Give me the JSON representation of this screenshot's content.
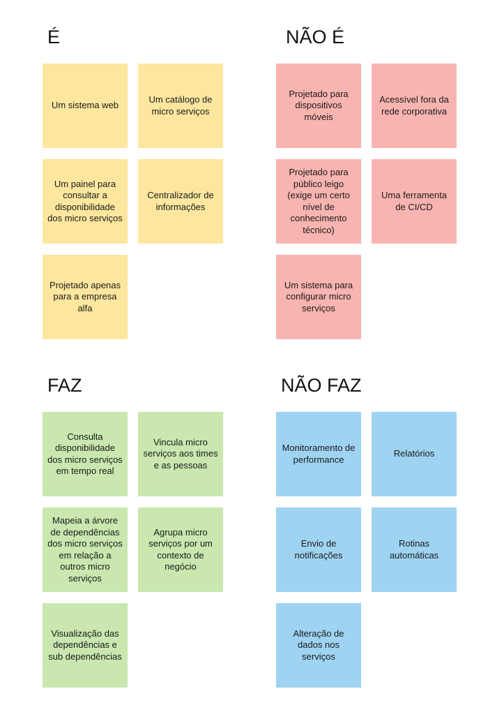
{
  "sections": {
    "e": {
      "title": "É",
      "notes": [
        "Um sistema web",
        "Um catálogo de micro serviços",
        "Um painel para consultar a disponibilidade dos micro serviços",
        "Centralizador de informações",
        "Projetado apenas para a empresa alfa"
      ]
    },
    "nao_e": {
      "title": "NÃO É",
      "notes": [
        "Projetado para dispositivos móveis",
        "Acessível fora da rede corporativa",
        "Projetado para público leigo (exige um certo nível de conhecimento técnico)",
        "Uma ferramenta de CI/CD",
        "Um sistema para configurar micro serviços"
      ]
    },
    "faz": {
      "title": "FAZ",
      "notes": [
        "Consulta disponibilidade dos micro serviços em tempo real",
        "Vincula micro serviços aos times e as pessoas",
        "Mapeia a árvore de dependências dos micro serviços em relação a outros micro serviços",
        "Agrupa micro serviços por um contexto de negócio",
        "Visualização das dependências e sub dependências"
      ]
    },
    "nao_faz": {
      "title": "NÃO FAZ",
      "notes": [
        "Monitoramento de performance",
        "Relatórios",
        "Envio de notificações",
        "Rotinas automáticas",
        "Alteração de dados nos serviços"
      ]
    }
  },
  "colors": {
    "e": "#fde79f",
    "nao_e": "#f8b4b0",
    "faz": "#c9e7af",
    "nao_faz": "#9fd3f2"
  }
}
